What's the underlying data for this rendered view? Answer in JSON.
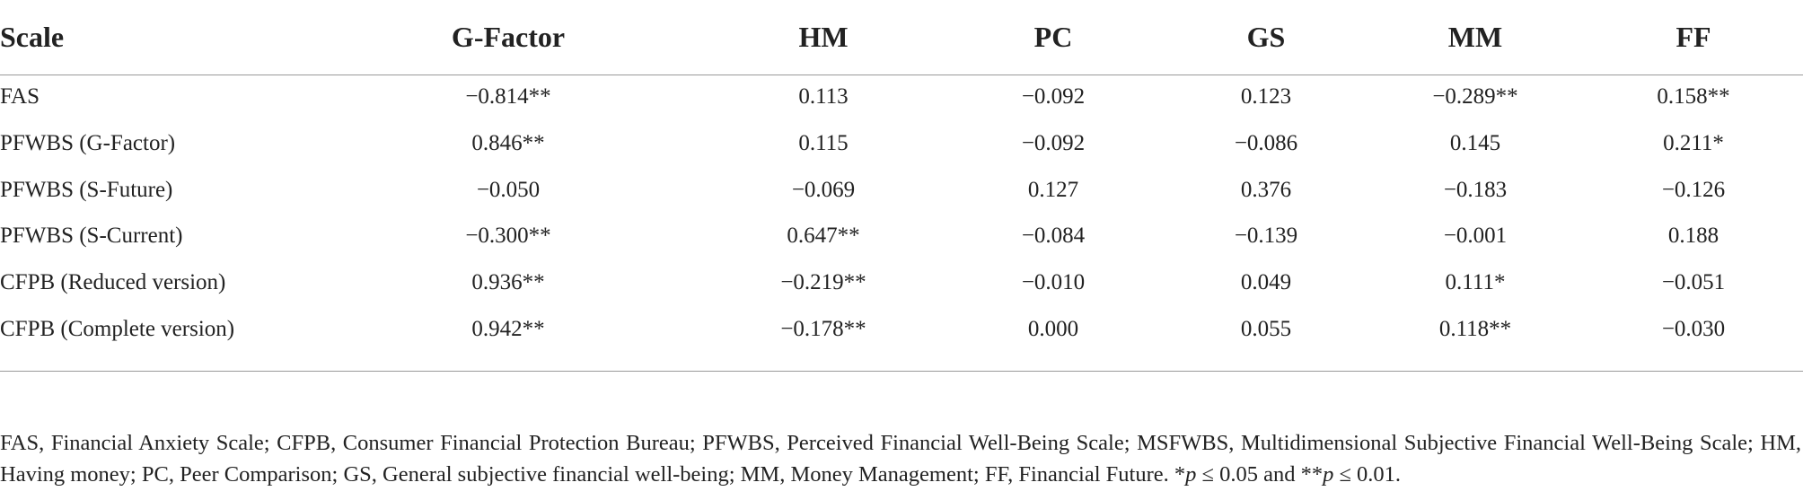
{
  "table": {
    "header": [
      "Scale",
      "G-Factor",
      "HM",
      "PC",
      "GS",
      "MM",
      "FF"
    ],
    "rows": [
      [
        "FAS",
        "−0.814**",
        "0.113",
        "−0.092",
        "0.123",
        "−0.289**",
        "0.158**"
      ],
      [
        "PFWBS (G-Factor)",
        "0.846**",
        "0.115",
        "−0.092",
        "−0.086",
        "0.145",
        "0.211*"
      ],
      [
        "PFWBS (S-Future)",
        "−0.050",
        "−0.069",
        "0.127",
        "0.376",
        "−0.183",
        "−0.126"
      ],
      [
        "PFWBS (S-Current)",
        "−0.300**",
        "0.647**",
        "−0.084",
        "−0.139",
        "−0.001",
        "0.188"
      ],
      [
        "CFPB (Reduced version)",
        "0.936**",
        "−0.219**",
        "−0.010",
        "0.049",
        "0.111*",
        "−0.051"
      ],
      [
        "CFPB (Complete version)",
        "0.942**",
        "−0.178**",
        "0.000",
        "0.055",
        "0.118**",
        "−0.030"
      ]
    ]
  },
  "footnote": [
    "FAS, Financial Anxiety Scale; CFPB, Consumer Financial Protection Bureau; PFWBS, Perceived Financial Well-Being Scale; MSFWBS, Multidimensional Subjective Financial Well-Being Scale; HM, Having money; PC, Peer Comparison; GS, General subjective financial well-being; MM, Money Management; FF, Financial Future. *",
    "p",
    " ≤ 0.05 and **",
    "p",
    " ≤ 0.01."
  ]
}
